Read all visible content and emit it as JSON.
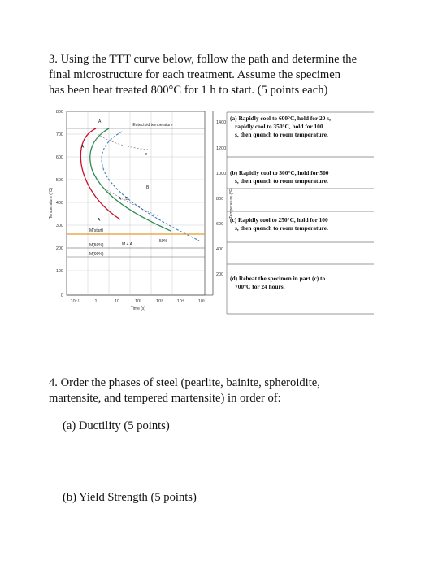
{
  "question3": {
    "lines": [
      "3. Using the TTT curve below, follow the path and determine the",
      "final microstructure for each treatment. Assume the specimen",
      "has been heat treated 800°C for 1 h to start. (5 points each)"
    ]
  },
  "figure": {
    "eutectoid_label": "Eutectoid temperature",
    "y_left_label": "Temperature (°C)",
    "y_right_label": "Temperature (°F)",
    "x_label": "Time (s)",
    "y_left_ticks": [
      "800",
      "700",
      "600",
      "500",
      "400",
      "300",
      "200",
      "100",
      "0"
    ],
    "y_right_ticks": [
      "1400",
      "1200",
      "1000",
      "800",
      "600",
      "400",
      "200"
    ],
    "x_ticks": [
      "10⁻¹",
      "1",
      "10",
      "10²",
      "10³",
      "10⁴",
      "10⁵"
    ],
    "region_labels": {
      "a_top": "A",
      "a_mid": "A",
      "a_low": "A",
      "p": "P",
      "b": "B",
      "a_b": "A→B",
      "m_a": "M + A",
      "fifty": "50%",
      "m_start": "M(start)",
      "m_50": "M(50%)",
      "m_90": "M(90%)"
    },
    "colors": {
      "start_curve": "#c8102e",
      "fifty_curve": "#2e8b57",
      "finish_curve": "#3a7fbf",
      "m_start_line": "#e89a2c"
    }
  },
  "treatments": [
    {
      "lines": [
        "(a) Rapidly cool to 600°C, hold for 20 s,",
        "rapidly cool to 350°C, hold for 100",
        "s, then quench to room temperature."
      ]
    },
    {
      "lines": [
        "(b) Rapidly cool to 300°C, hold for 500",
        "s, then quench to room temperature."
      ]
    },
    {
      "lines": [
        "(c) Rapidly cool to 250°C, hold for 100",
        "s, then quench to room temperature."
      ]
    },
    {
      "lines": [
        "(d) Reheat the specimen in part (c) to",
        "700°C for 24 hours."
      ]
    }
  ],
  "question4": {
    "lines": [
      "4. Order the phases of steel (pearlite, bainite, spheroidite,",
      "martensite, and tempered martensite) in order of:"
    ],
    "part_a": "(a) Ductility (5 points)",
    "part_b": "(b) Yield Strength (5 points)"
  }
}
